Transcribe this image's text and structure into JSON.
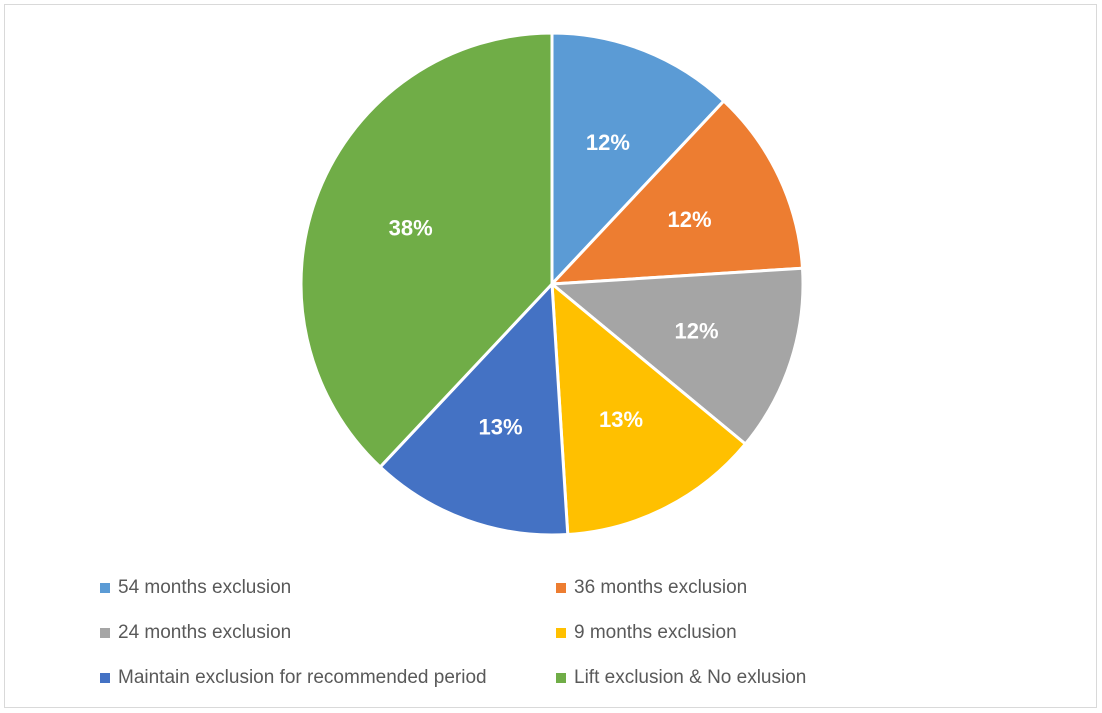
{
  "chart_data": {
    "type": "pie",
    "title": "",
    "start_angle": "12 o'clock, clockwise",
    "slices": [
      {
        "name": "54 months exclusion",
        "value": 12,
        "label": "12%",
        "color": "#5b9bd5"
      },
      {
        "name": "36 months exclusion",
        "value": 12,
        "label": "12%",
        "color": "#ed7d31"
      },
      {
        "name": "24 months exclusion",
        "value": 12,
        "label": "12%",
        "color": "#a5a5a5"
      },
      {
        "name": "9 months exclusion",
        "value": 13,
        "label": "13%",
        "color": "#ffc000"
      },
      {
        "name": "Maintain exclusion for recommended period",
        "value": 13,
        "label": "13%",
        "color": "#4472c4"
      },
      {
        "name": "Lift exclusion & No exlusion",
        "value": 38,
        "label": "38%",
        "color": "#70ad47"
      }
    ],
    "legend_position": "bottom"
  }
}
